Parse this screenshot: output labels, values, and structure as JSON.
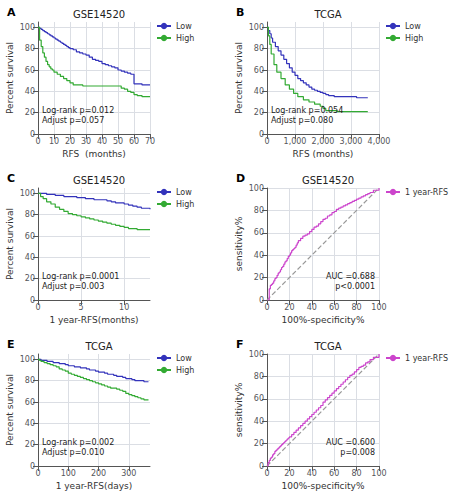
{
  "chart_data": [
    {
      "type": "line",
      "panel_label": "A",
      "title": "GSE14520",
      "x_label": "RFS  (months)",
      "y_label": "Percent survival",
      "xlim": [
        0,
        70
      ],
      "ylim": [
        0,
        105
      ],
      "xticks": [
        0,
        10,
        20,
        30,
        40,
        50,
        60,
        70
      ],
      "yticks": [
        0,
        20,
        40,
        60,
        80,
        100
      ],
      "grid": true,
      "legend": "right",
      "annotations": [
        "Log-rank p=0.012",
        "Adjust p=0.057"
      ],
      "series": [
        {
          "name": "Low",
          "type": "step",
          "color": "#3333bb",
          "x": [
            0,
            1,
            2,
            3,
            4,
            5,
            6,
            7,
            8,
            9,
            10,
            11,
            12,
            13,
            14,
            15,
            16,
            17,
            18,
            19,
            20,
            22,
            24,
            26,
            28,
            30,
            32,
            34,
            36,
            38,
            40,
            42,
            44,
            46,
            48,
            50,
            52,
            54,
            56,
            58,
            60,
            62,
            65,
            68,
            70
          ],
          "values": [
            100,
            99,
            98,
            97,
            96,
            95,
            94,
            93,
            92,
            91,
            90,
            89,
            88,
            87,
            86,
            85,
            84,
            83,
            82,
            81,
            80,
            79,
            77,
            76,
            75,
            74,
            72,
            70,
            69,
            68,
            66,
            65,
            64,
            63,
            62,
            60,
            59,
            58,
            57,
            56,
            47,
            47,
            46,
            46,
            46
          ]
        },
        {
          "name": "High",
          "type": "step",
          "color": "#33aa33",
          "x": [
            0,
            1,
            2,
            3,
            4,
            5,
            6,
            7,
            8,
            9,
            10,
            12,
            14,
            16,
            18,
            20,
            22,
            24,
            26,
            28,
            30,
            32,
            34,
            36,
            38,
            40,
            42,
            44,
            46,
            48,
            50,
            52,
            54,
            56,
            58,
            60,
            62,
            65,
            70
          ],
          "values": [
            100,
            88,
            82,
            76,
            72,
            68,
            65,
            63,
            61,
            60,
            58,
            56,
            54,
            52,
            50,
            48,
            46,
            46,
            46,
            45,
            45,
            45,
            45,
            45,
            45,
            45,
            45,
            45,
            45,
            45,
            45,
            43,
            42,
            40,
            39,
            37,
            36,
            35,
            35
          ]
        }
      ]
    },
    {
      "type": "line",
      "panel_label": "B",
      "title": "TCGA",
      "x_label": "RFS (months)",
      "y_label": "Percent survival",
      "xlim": [
        0,
        4000
      ],
      "ylim": [
        0,
        105
      ],
      "xticks": [
        0,
        1000,
        2000,
        3000,
        4000
      ],
      "yticks": [
        0,
        20,
        40,
        60,
        80,
        100
      ],
      "grid": true,
      "legend": "right",
      "annotations": [
        "Log-rank p=0.054",
        "Adjust p=0.080"
      ],
      "series": [
        {
          "name": "Low",
          "type": "step",
          "color": "#3333bb",
          "x": [
            0,
            50,
            100,
            150,
            200,
            300,
            400,
            500,
            600,
            700,
            800,
            900,
            1000,
            1100,
            1200,
            1300,
            1400,
            1500,
            1600,
            1700,
            1800,
            1900,
            2000,
            2100,
            2200,
            2400,
            2600,
            2800,
            3000,
            3200,
            3600
          ],
          "values": [
            100,
            97,
            94,
            90,
            86,
            82,
            78,
            74,
            70,
            66,
            62,
            58,
            55,
            52,
            50,
            48,
            46,
            44,
            42,
            41,
            40,
            39,
            38,
            37,
            36,
            35,
            35,
            35,
            35,
            34,
            34
          ]
        },
        {
          "name": "High",
          "type": "step",
          "color": "#33aa33",
          "x": [
            0,
            50,
            100,
            150,
            250,
            350,
            500,
            650,
            800,
            950,
            1100,
            1300,
            1500,
            1700,
            1900,
            2000,
            2100,
            2500,
            3600
          ],
          "values": [
            100,
            92,
            84,
            75,
            65,
            58,
            52,
            46,
            42,
            38,
            35,
            32,
            30,
            28,
            26,
            24,
            22,
            21,
            21
          ]
        }
      ]
    },
    {
      "type": "line",
      "panel_label": "C",
      "title": "GSE14520",
      "x_label": "1 year-RFS(months)",
      "y_label": "Percent survival",
      "xlim": [
        0,
        13
      ],
      "ylim": [
        0,
        105
      ],
      "xticks": [
        0,
        5,
        10
      ],
      "yticks": [
        0,
        20,
        40,
        60,
        80,
        100
      ],
      "grid": true,
      "legend": "right",
      "annotations": [
        "Log-rank p=0.0001",
        "Adjust p=0.003"
      ],
      "series": [
        {
          "name": "Low",
          "type": "step",
          "color": "#3333bb",
          "x": [
            0,
            0.3,
            0.6,
            1,
            1.5,
            2,
            2.5,
            3,
            3.5,
            4,
            4.5,
            5,
            5.5,
            6,
            6.5,
            7,
            7.5,
            8,
            8.5,
            9,
            9.5,
            10,
            10.5,
            11,
            11.5,
            12,
            12.5,
            13
          ],
          "values": [
            100,
            100,
            100,
            99,
            99,
            98,
            98,
            97,
            97,
            97,
            96,
            96,
            95,
            95,
            94,
            94,
            94,
            93,
            92,
            91,
            91,
            90,
            89,
            88,
            87,
            86,
            86,
            85
          ]
        },
        {
          "name": "High",
          "type": "step",
          "color": "#33aa33",
          "x": [
            0,
            0.3,
            0.6,
            1,
            1.5,
            2,
            2.5,
            3,
            3.5,
            4,
            4.5,
            5,
            5.5,
            6,
            6.5,
            7,
            7.5,
            8,
            8.5,
            9,
            9.5,
            10,
            10.5,
            11,
            11.5,
            12,
            12.5,
            13
          ],
          "values": [
            100,
            97,
            95,
            92,
            90,
            87,
            85,
            83,
            81,
            80,
            79,
            78,
            77,
            76,
            75,
            74,
            73,
            72,
            71,
            70,
            69,
            68,
            67,
            67,
            66,
            66,
            66,
            66
          ]
        }
      ]
    },
    {
      "type": "line",
      "panel_label": "D",
      "title": "GSE14520",
      "x_label": "100%-specificity%",
      "y_label": "sensitivity%",
      "xlim": [
        0,
        100
      ],
      "ylim": [
        0,
        100
      ],
      "xticks": [
        0,
        20,
        40,
        60,
        80,
        100
      ],
      "yticks": [
        0,
        20,
        40,
        60,
        80,
        100
      ],
      "grid": true,
      "legend": "right",
      "annotations": [
        "AUC =0.688",
        "p<0.0001"
      ],
      "series": [
        {
          "type": "line",
          "color": "#999999",
          "line_style": "dashed",
          "x": [
            0,
            100
          ],
          "values": [
            0,
            100
          ]
        },
        {
          "name": "1 year-RFS",
          "type": "step",
          "color": "#cc44cc",
          "x": [
            0,
            2,
            3,
            4,
            5,
            6,
            7,
            8,
            9,
            10,
            11,
            12,
            13,
            14,
            15,
            16,
            17,
            18,
            19,
            20,
            21,
            22,
            23,
            24,
            25,
            26,
            27,
            28,
            30,
            32,
            34,
            36,
            38,
            40,
            42,
            44,
            46,
            48,
            50,
            52,
            54,
            56,
            58,
            60,
            62,
            64,
            66,
            68,
            70,
            72,
            74,
            76,
            78,
            80,
            82,
            84,
            86,
            88,
            90,
            92,
            95,
            100
          ],
          "values": [
            0,
            10,
            13,
            14,
            15,
            17,
            19,
            20,
            22,
            24,
            25,
            27,
            29,
            30,
            32,
            34,
            35,
            37,
            39,
            40,
            42,
            44,
            45,
            46,
            47,
            49,
            51,
            53,
            55,
            57,
            58,
            59,
            61,
            63,
            65,
            66,
            68,
            70,
            72,
            73,
            75,
            76,
            78,
            79,
            81,
            82,
            83,
            84,
            85,
            86,
            87,
            88,
            89,
            90,
            91,
            92,
            93,
            94,
            95,
            96,
            98,
            100
          ]
        }
      ]
    },
    {
      "type": "line",
      "panel_label": "E",
      "title": "TCGA",
      "x_label": "1 year-RFS(days)",
      "y_label": "Percent survival",
      "xlim": [
        0,
        370
      ],
      "ylim": [
        0,
        105
      ],
      "xticks": [
        0,
        100,
        200,
        300
      ],
      "yticks": [
        0,
        20,
        40,
        60,
        80,
        100
      ],
      "grid": true,
      "legend": "right",
      "annotations": [
        "Log-rank p=0.002",
        "Adjust p=0.010"
      ],
      "series": [
        {
          "name": "Low",
          "type": "step",
          "color": "#3333bb",
          "x": [
            0,
            5,
            10,
            20,
            30,
            40,
            50,
            60,
            70,
            80,
            90,
            100,
            110,
            120,
            130,
            140,
            150,
            160,
            170,
            180,
            190,
            200,
            210,
            220,
            230,
            240,
            250,
            260,
            270,
            280,
            290,
            300,
            310,
            320,
            330,
            340,
            350,
            365
          ],
          "values": [
            100,
            100,
            99,
            99,
            98,
            98,
            97,
            97,
            96,
            96,
            95,
            94,
            94,
            93,
            93,
            92,
            92,
            91,
            90,
            90,
            89,
            88,
            88,
            87,
            86,
            86,
            85,
            84,
            84,
            83,
            82,
            82,
            81,
            80,
            80,
            80,
            79,
            79
          ]
        },
        {
          "name": "High",
          "type": "step",
          "color": "#33aa33",
          "x": [
            0,
            5,
            10,
            20,
            30,
            40,
            50,
            60,
            70,
            80,
            90,
            100,
            110,
            120,
            130,
            140,
            150,
            160,
            170,
            180,
            190,
            200,
            210,
            220,
            230,
            240,
            250,
            260,
            270,
            280,
            290,
            300,
            310,
            320,
            330,
            340,
            350,
            365
          ],
          "values": [
            100,
            99,
            98,
            97,
            96,
            95,
            94,
            93,
            91,
            90,
            89,
            87,
            86,
            85,
            84,
            83,
            82,
            81,
            80,
            79,
            78,
            77,
            76,
            75,
            74,
            73,
            73,
            72,
            71,
            70,
            68,
            67,
            66,
            65,
            64,
            63,
            62,
            62
          ]
        }
      ]
    },
    {
      "type": "line",
      "panel_label": "F",
      "title": "TCGA",
      "x_label": "100%-specificity%",
      "y_label": "sensitivity%",
      "xlim": [
        0,
        100
      ],
      "ylim": [
        0,
        100
      ],
      "xticks": [
        0,
        20,
        40,
        60,
        80,
        100
      ],
      "yticks": [
        0,
        20,
        40,
        60,
        80,
        100
      ],
      "grid": true,
      "legend": "right",
      "annotations": [
        "AUC =0.600",
        "p=0.008"
      ],
      "series": [
        {
          "type": "line",
          "color": "#999999",
          "line_style": "dashed",
          "x": [
            0,
            100
          ],
          "values": [
            0,
            100
          ]
        },
        {
          "name": "1 year-RFS",
          "type": "step",
          "color": "#cc44cc",
          "x": [
            0,
            1,
            2,
            3,
            4,
            5,
            6,
            7,
            8,
            9,
            10,
            11,
            12,
            13,
            14,
            15,
            16,
            17,
            18,
            19,
            20,
            22,
            24,
            26,
            28,
            30,
            32,
            34,
            36,
            38,
            40,
            42,
            44,
            46,
            48,
            50,
            52,
            54,
            56,
            58,
            60,
            62,
            64,
            66,
            68,
            70,
            72,
            74,
            76,
            78,
            80,
            82,
            84,
            86,
            88,
            90,
            92,
            95,
            100
          ],
          "values": [
            0,
            3,
            5,
            7,
            8,
            10,
            11,
            13,
            14,
            15,
            16,
            17,
            18,
            19,
            20,
            21,
            22,
            23,
            24,
            25,
            26,
            28,
            30,
            32,
            34,
            36,
            38,
            40,
            42,
            44,
            46,
            48,
            50,
            52,
            54,
            57,
            59,
            61,
            63,
            65,
            67,
            69,
            71,
            73,
            75,
            77,
            79,
            81,
            82,
            84,
            86,
            88,
            89,
            90,
            92,
            93,
            95,
            97,
            100
          ]
        }
      ]
    }
  ]
}
